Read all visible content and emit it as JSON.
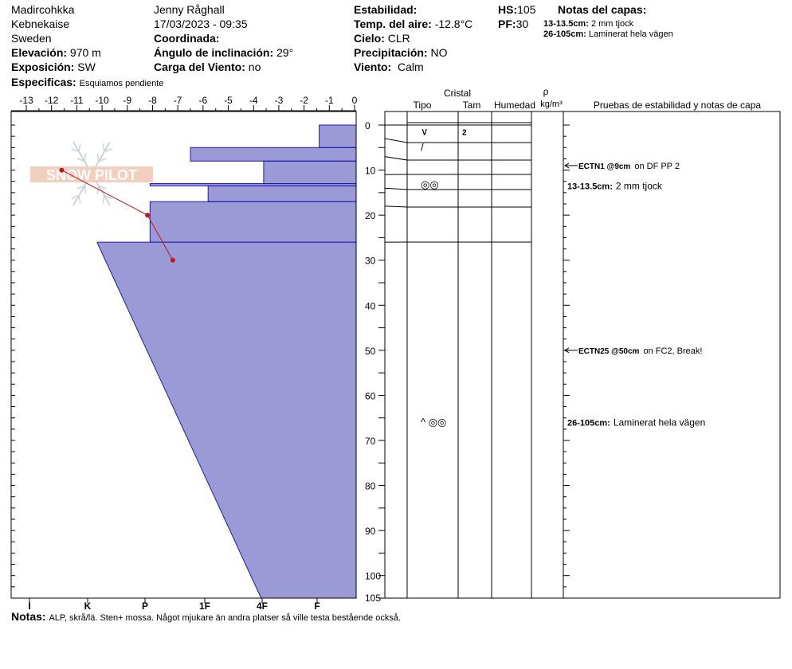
{
  "header": {
    "location1": "Madircohkka",
    "location2": "Kebnekaise",
    "country": "Sweden",
    "observer": "Jenny Råghall",
    "datetime": "17/03/2023 - 09:35",
    "elevation_label": "Elevación:",
    "elevation_value": "970 m",
    "aspect_label": "Exposición:",
    "aspect_value": "SW",
    "specifics_label": "Especificas:",
    "specifics_value": "Esquiamos pendiente",
    "coordinates_label": "Coordinada:",
    "slope_label": "Ángulo de inclinación:",
    "slope_value": "29°",
    "windload_label": "Carga del Viento:",
    "windload_value": "no",
    "stability_label": "Estabilidad:",
    "airtemp_label": "Temp. del aire:",
    "airtemp_value": "-12.8°C",
    "sky_label": "Cielo:",
    "sky_value": "CLR",
    "precip_label": "Precipitación:",
    "precip_value": "NO",
    "wind_label": "Viento:",
    "wind_value": "Calm",
    "hs_label": "HS:",
    "hs_value": "105",
    "pf_label": "PF:",
    "pf_value": "30",
    "layer_notes_title": "Notas del capas:",
    "layer_notes": [
      {
        "range": "13-13.5cm:",
        "text": "2 mm tjock"
      },
      {
        "range": "26-105cm:",
        "text": "Laminerat hela vägen"
      }
    ]
  },
  "notes_label": "Notas:",
  "notes_value": "ALP, skrå/lä. Sten+ mossa. Något mjukare än andra platser så ville testa bestående också.",
  "watermark": "SNOW PILOT",
  "colors": {
    "fill": "#9c9ad6",
    "stroke": "#1a1ab0",
    "temp": "#c0161c",
    "watermark": "#e8a98a"
  },
  "chart_data": {
    "type": "snow_profile",
    "temp_axis": {
      "ticks": [
        "-13",
        "-12",
        "-11",
        "-10",
        "-9",
        "-8",
        "-7",
        "-6",
        "-5",
        "-4",
        "-3",
        "-2",
        "-1",
        "0"
      ],
      "min": -13,
      "max": 0
    },
    "hardness_axis": {
      "labels": [
        "I",
        "K",
        "P",
        "1F",
        "4F",
        "F"
      ]
    },
    "depth_axis": {
      "max": 105,
      "labels": [
        "0",
        "10",
        "20",
        "30",
        "40",
        "50",
        "60",
        "70",
        "80",
        "90",
        "100",
        "105"
      ],
      "label_values": [
        0,
        10,
        20,
        30,
        40,
        50,
        60,
        70,
        80,
        90,
        100,
        105
      ]
    },
    "hardness_profile": [
      {
        "top": 0,
        "bottom": 5,
        "temp_left": -1.4
      },
      {
        "top": 5,
        "bottom": 8,
        "temp_left": -6.5
      },
      {
        "top": 8,
        "bottom": 13,
        "temp_left": -3.6
      },
      {
        "top": 13,
        "bottom": 13.5,
        "temp_left": -8.1
      },
      {
        "top": 13.5,
        "bottom": 17,
        "temp_left": -5.8
      },
      {
        "top": 17,
        "bottom": 26,
        "temp_left": -8.1
      },
      {
        "top": 26,
        "bottom": 105,
        "temp_left_top": -10.2,
        "temp_left_bottom": -3.7
      }
    ],
    "temperature_profile": [
      {
        "depth": 10,
        "temp": -11.6
      },
      {
        "depth": 20,
        "temp": -8.2
      },
      {
        "depth": 30,
        "temp": -7.2
      }
    ],
    "columns": {
      "cristal": "Cristal",
      "tipo": "Tipo",
      "tam": "Tam",
      "humedad": "Humedad",
      "rho": "ρ",
      "density_unit": "kg/m³",
      "tests": "Pruebas de estabilidad y notas de capa"
    },
    "layer_boundaries": [
      0,
      3,
      7,
      11,
      14,
      18,
      26
    ],
    "crystals": [
      {
        "depth": 1.5,
        "glyph": "∨",
        "size": "2"
      },
      {
        "depth": 5,
        "glyph": "/",
        "size": ""
      },
      {
        "depth": 13.3,
        "glyph": "◎◎",
        "size": ""
      },
      {
        "depth": 66,
        "glyph": "^ ◎◎",
        "size": ""
      }
    ],
    "stability_tests": [
      {
        "depth": 9,
        "code": "ECTN1 @9cm",
        "desc": "on DF PP 2"
      },
      {
        "depth": 50,
        "code": "ECTN25 @50cm",
        "desc": "on FC2, Break!"
      }
    ],
    "layer_comments": [
      {
        "depth": 13.5,
        "range": "13-13.5cm:",
        "text": "2 mm tjock"
      },
      {
        "depth": 66,
        "range": "26-105cm:",
        "text": "Laminerat hela vägen"
      }
    ]
  }
}
